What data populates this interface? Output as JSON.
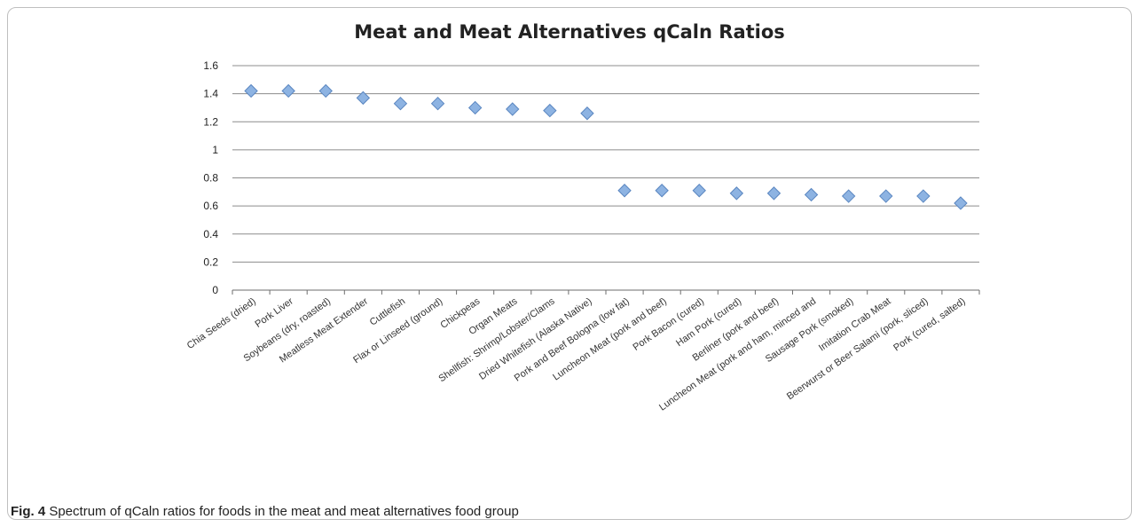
{
  "chart_data": {
    "type": "scatter",
    "title": "Meat and Meat Alternatives qCaln Ratios",
    "xlabel": "",
    "ylabel": "",
    "ylim": [
      0,
      1.6
    ],
    "yticks": [
      "0",
      "0.2",
      "0.4",
      "0.6",
      "0.8",
      "1",
      "1.2",
      "1.4",
      "1.6"
    ],
    "grid": true,
    "legend": "none",
    "marker_color": "#8db3e2",
    "categories": [
      "Chia Seeds (dried)",
      "Pork Liver",
      "Soybeans (dry, roasted)",
      "Meatless Meat Extender",
      "Cuttlefish",
      "Flax or Linseed (ground)",
      "Chickpeas",
      "Organ Meats",
      "Shellfish: Shrimp/Lobster/Clams",
      "Dried Whitefish (Alaska Native)",
      "Pork and Beef Bologna (low fat)",
      "Luncheon Meat (pork and beef)",
      "Pork Bacon (cured)",
      "Ham Pork (cured)",
      "Berliner (pork and beef)",
      "Luncheon Meat (pork and ham, minced and",
      "Sausage Pork (smoked)",
      "Imitation Crab Meat",
      "Beerwurst or Beer Salami (pork, sliced)",
      "Pork (cured, salted)"
    ],
    "values": [
      1.42,
      1.42,
      1.42,
      1.37,
      1.33,
      1.33,
      1.3,
      1.29,
      1.28,
      1.26,
      0.71,
      0.71,
      0.71,
      0.69,
      0.69,
      0.68,
      0.67,
      0.67,
      0.67,
      0.62
    ]
  },
  "caption": {
    "label": "Fig. 4",
    "text": " Spectrum of qCaln ratios for foods in the meat and meat alternatives food group"
  }
}
